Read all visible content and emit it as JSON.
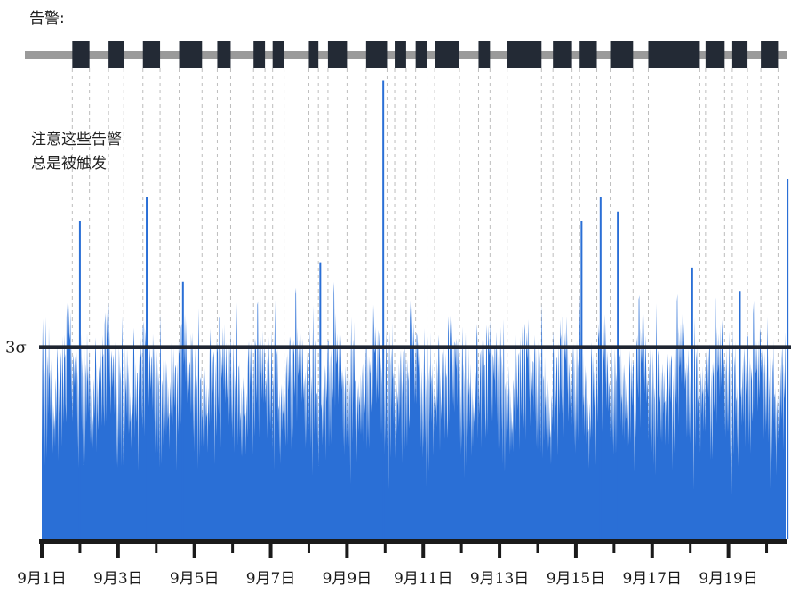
{
  "alert_label": "告警:",
  "annotation": {
    "line1": "注意这些告警",
    "line2": "总是被触发"
  },
  "chart_data": {
    "type": "area",
    "title": "",
    "xlabel": "",
    "ylabel": "",
    "colors": {
      "series": "#2a6fd6",
      "threshold": "#1e2430",
      "alert_block": "#232a35",
      "alert_track": "#9a9a9a",
      "gridline": "#bdbdbd",
      "axis": "#1a1a1a"
    },
    "threshold": {
      "label": "3σ",
      "level": 0.41
    },
    "x_tick_labels": [
      "9月1日",
      "9月3日",
      "9月5日",
      "9月7日",
      "9月9日",
      "9月11日",
      "9月13日",
      "9月15日",
      "9月17日",
      "9月19日"
    ],
    "x_range_days": [
      0,
      19.5
    ],
    "alert_blocks_days": [
      [
        0.8,
        1.25
      ],
      [
        1.75,
        2.15
      ],
      [
        2.65,
        3.1
      ],
      [
        3.6,
        4.2
      ],
      [
        4.6,
        4.95
      ],
      [
        5.55,
        5.85
      ],
      [
        6.05,
        6.35
      ],
      [
        7.0,
        7.25
      ],
      [
        7.5,
        8.0
      ],
      [
        8.5,
        9.05
      ],
      [
        9.25,
        9.55
      ],
      [
        9.8,
        10.1
      ],
      [
        10.3,
        10.95
      ],
      [
        11.45,
        11.75
      ],
      [
        12.2,
        13.1
      ],
      [
        13.4,
        13.9
      ],
      [
        14.1,
        14.55
      ],
      [
        14.9,
        15.5
      ],
      [
        15.9,
        17.25
      ],
      [
        17.4,
        17.9
      ],
      [
        18.1,
        18.5
      ],
      [
        18.85,
        19.3
      ]
    ],
    "series": [
      {
        "values_daily_profile": [
          0.2,
          0.34,
          0.44,
          0.36,
          0.2,
          0.36,
          0.32,
          0.14,
          0.4,
          0.48,
          0.32,
          0.18,
          0.36,
          0.38,
          0.24,
          0.42,
          0.3,
          0.32,
          0.22,
          0.36,
          0.3,
          0.18,
          0.34,
          0.3,
          0.22,
          0.32,
          0.26,
          0.28,
          0.2,
          0.34,
          0.3,
          0.24,
          0.38,
          0.42,
          0.36,
          0.2,
          0.38,
          0.32,
          0.28,
          0.36,
          0.4,
          0.4,
          0.18,
          0.32,
          0.4,
          0.3,
          0.22,
          0.42,
          0.38,
          0.4,
          0.3,
          0.26,
          0.48,
          0.5,
          0.38,
          0.24,
          0.46,
          0.42,
          0.38,
          0.4,
          0.46,
          0.38,
          0.3,
          0.44,
          0.34,
          0.28,
          0.42,
          0.4,
          0.36,
          0.32,
          0.38,
          0.36,
          0.24,
          0.4,
          0.36,
          0.22,
          0.4,
          0.34,
          0.2,
          0.34
        ]
      }
    ],
    "spikes": [
      {
        "day": 1.0,
        "level": 0.68
      },
      {
        "day": 2.75,
        "level": 0.73
      },
      {
        "day": 3.7,
        "level": 0.55
      },
      {
        "day": 7.3,
        "level": 0.59
      },
      {
        "day": 8.95,
        "level": 0.98
      },
      {
        "day": 14.15,
        "level": 0.68
      },
      {
        "day": 14.65,
        "level": 0.73
      },
      {
        "day": 15.1,
        "level": 0.7
      },
      {
        "day": 17.05,
        "level": 0.58
      },
      {
        "day": 18.3,
        "level": 0.53
      },
      {
        "day": 19.55,
        "level": 0.77
      }
    ]
  }
}
